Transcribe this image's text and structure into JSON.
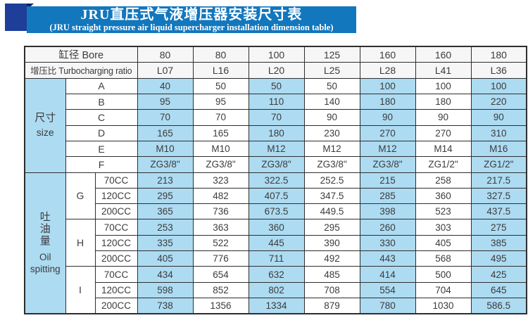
{
  "header": {
    "title_cn": "JRU直压式气液增压器安装尺寸表",
    "title_en": "(JRU straight pressure air liquid supercharger installation dimension table)"
  },
  "table": {
    "bore_label": "缸径 Bore",
    "ratio_label": "增压比 Turbocharging ratio",
    "bore_values": [
      "80",
      "80",
      "100",
      "125",
      "160",
      "160",
      "180"
    ],
    "ratio_values": [
      "L07",
      "L16",
      "L20",
      "L25",
      "L28",
      "L41",
      "L36"
    ],
    "size_section": {
      "label_cn": "尺寸",
      "label_en": "size",
      "rows": [
        {
          "label": "A",
          "values": [
            "40",
            "50",
            "50",
            "50",
            "100",
            "100",
            "100"
          ]
        },
        {
          "label": "B",
          "values": [
            "95",
            "95",
            "110",
            "140",
            "180",
            "180",
            "220"
          ]
        },
        {
          "label": "C",
          "values": [
            "70",
            "70",
            "70",
            "90",
            "90",
            "90",
            "90"
          ]
        },
        {
          "label": "D",
          "values": [
            "165",
            "165",
            "180",
            "230",
            "270",
            "270",
            "310"
          ]
        },
        {
          "label": "E",
          "values": [
            "M10",
            "M10",
            "M12",
            "M12",
            "M12",
            "M14",
            "M16"
          ]
        },
        {
          "label": "F",
          "values": [
            "ZG3/8\"",
            "ZG3/8\"",
            "ZG3/8\"",
            "ZG3/8\"",
            "ZG3/8\"",
            "ZG1/2\"",
            "ZG1/2\""
          ]
        }
      ]
    },
    "oil_section": {
      "label_cn": "吐油量",
      "label_en_line1": "Oil",
      "label_en_line2": "spitting",
      "groups": [
        {
          "label": "G",
          "rows": [
            {
              "label": "70CC",
              "values": [
                "213",
                "323",
                "322.5",
                "252.5",
                "215",
                "258",
                "217.5"
              ]
            },
            {
              "label": "120CC",
              "values": [
                "295",
                "482",
                "407.5",
                "347.5",
                "285",
                "360",
                "327.5"
              ]
            },
            {
              "label": "200CC",
              "values": [
                "365",
                "736",
                "673.5",
                "449.5",
                "398",
                "523",
                "437.5"
              ]
            }
          ]
        },
        {
          "label": "H",
          "rows": [
            {
              "label": "70CC",
              "values": [
                "253",
                "363",
                "360",
                "295",
                "260",
                "303",
                "275"
              ]
            },
            {
              "label": "120CC",
              "values": [
                "335",
                "522",
                "445",
                "390",
                "330",
                "405",
                "385"
              ]
            },
            {
              "label": "200CC",
              "values": [
                "405",
                "776",
                "711",
                "492",
                "443",
                "568",
                "495"
              ]
            }
          ]
        },
        {
          "label": "I",
          "rows": [
            {
              "label": "70CC",
              "values": [
                "434",
                "654",
                "632",
                "485",
                "414",
                "500",
                "425"
              ]
            },
            {
              "label": "120CC",
              "values": [
                "598",
                "852",
                "802",
                "708",
                "554",
                "704",
                "645"
              ]
            },
            {
              "label": "200CC",
              "values": [
                "738",
                "1356",
                "1334",
                "879",
                "780",
                "1030",
                "586.5"
              ]
            }
          ]
        }
      ]
    }
  },
  "colors": {
    "banner_blue": "#1277bd",
    "logo_navy": "#1e3e9a",
    "fold_navy": "#13235f",
    "cell_blue": "#addbf2",
    "border": "#2e2e2e",
    "text": "#3c3c3c"
  }
}
